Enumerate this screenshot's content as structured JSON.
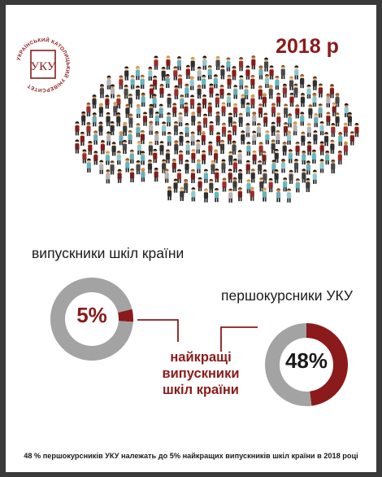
{
  "logo": {
    "text_ring": "УКРАЇНСЬКИЙ КАТОЛИЦЬКИЙ УНІВЕРСИТЕТ",
    "monogram": "УКУ"
  },
  "year_label": "2018 р",
  "colors": {
    "accent": "#8b1a1a",
    "gray": "#a3a3a3",
    "text": "#1a1a1a",
    "frame": "#3a3a3a"
  },
  "chart_data": [
    {
      "type": "pie",
      "title": "випускники шкіл країни",
      "center_label": "5%",
      "slices": [
        {
          "value": 5,
          "color": "#8b1a1a"
        },
        {
          "value": 95,
          "color": "#a3a3a3"
        }
      ]
    },
    {
      "type": "pie",
      "title": "першокурсники УКУ",
      "center_label": "48%",
      "slices": [
        {
          "value": 48,
          "color": "#8b1a1a"
        },
        {
          "value": 52,
          "color": "#a3a3a3"
        }
      ]
    }
  ],
  "connector_label": [
    "найкращі",
    "випускники",
    "шкіл країни"
  ],
  "footnote": "48 % першокурсників УКУ належать до 5% найкращих випускників шкіл країни в 2018 році"
}
